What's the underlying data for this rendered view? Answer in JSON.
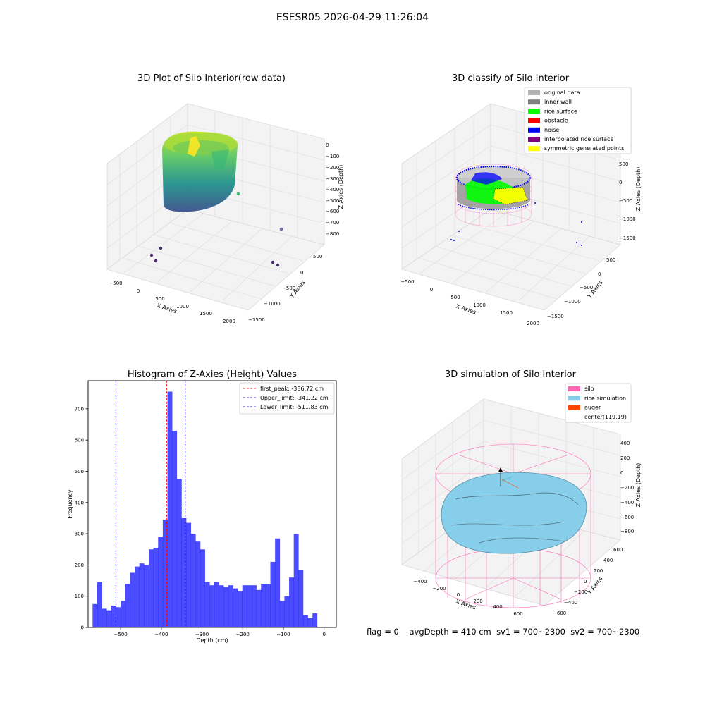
{
  "figure": {
    "title": "ESESR05 2026-04-29 11:26:04",
    "status": {
      "flag": "flag = 0",
      "avg_depth": "avgDepth = 410 cm",
      "sv1": "sv1 = 700~2300",
      "sv2": "sv2 = 700~2300"
    }
  },
  "chart_data": [
    {
      "type": "scatter",
      "title": "3D Plot of Silo Interior(row data)",
      "xlabel": "X Axies",
      "ylabel": "Y Axies",
      "zlabel": "Z Axies (Depth)",
      "x_ticks": [
        "−500",
        "0",
        "500",
        "1000",
        "1500",
        "2000"
      ],
      "y_ticks": [
        "500",
        "0",
        "−500",
        "−1000",
        "−1500"
      ],
      "z_ticks": [
        "0",
        "−100",
        "−200",
        "−300",
        "−400",
        "−500",
        "−600",
        "−700",
        "−800"
      ],
      "colormap": "viridis",
      "outlier_points": [
        {
          "x": 2100,
          "y": 200,
          "z": -820
        },
        {
          "x": 1450,
          "y": -380,
          "z": -500
        }
      ]
    },
    {
      "type": "scatter",
      "title": "3D classify of Silo Interior",
      "xlabel": "X Axies",
      "ylabel": "Y Axies",
      "zlabel": "Z Axies (Depth)",
      "x_ticks": [
        "−500",
        "0",
        "500",
        "1000",
        "1500",
        "2000"
      ],
      "y_ticks": [
        "500",
        "0",
        "−500",
        "−1000",
        "−1500"
      ],
      "z_ticks": [
        "1000",
        "500",
        "0",
        "−500",
        "−1000",
        "−1500"
      ],
      "legend_position": "top-right",
      "legend": [
        {
          "label": "original data",
          "color": "#b3b3b3"
        },
        {
          "label": "inner wall",
          "color": "#808080"
        },
        {
          "label": "rice surface",
          "color": "#00ff00"
        },
        {
          "label": "obstacle",
          "color": "#ff0000"
        },
        {
          "label": "noise",
          "color": "#0000ff"
        },
        {
          "label": "interpolated rice surface",
          "color": "#800080"
        },
        {
          "label": "symmetric generated points",
          "color": "#ffff00"
        }
      ]
    },
    {
      "type": "bar",
      "title": "Histogram of Z-Axies (Height) Values",
      "xlabel": "Depth (cm)",
      "ylabel": "Frequency",
      "xlim": [
        -580,
        30
      ],
      "ylim": [
        0,
        790
      ],
      "x_ticks": [
        -500,
        -400,
        -300,
        -200,
        -100,
        0
      ],
      "x_tick_labels": [
        "−500",
        "−400",
        "−300",
        "−200",
        "−100",
        "0"
      ],
      "y_ticks": [
        0,
        100,
        200,
        300,
        400,
        500,
        600,
        700
      ],
      "y_tick_labels": [
        "0",
        "100",
        "200",
        "300",
        "400",
        "500",
        "600",
        "700"
      ],
      "bin_start": -569,
      "bin_width": 11.5,
      "values": [
        75,
        145,
        60,
        55,
        70,
        65,
        85,
        140,
        175,
        195,
        205,
        200,
        250,
        255,
        290,
        345,
        755,
        630,
        475,
        350,
        335,
        300,
        275,
        250,
        145,
        135,
        145,
        135,
        130,
        135,
        125,
        115,
        135,
        135,
        135,
        120,
        140,
        140,
        210,
        285,
        85,
        100,
        160,
        300,
        185,
        40,
        30,
        45
      ],
      "bar_color": "#0000ff",
      "legend_position": "top-right",
      "vlines": [
        {
          "label": "first_peak: -386.72 cm",
          "x": -386.72,
          "color": "#ff0000"
        },
        {
          "label": "Upper_limit: -341.22 cm",
          "x": -341.22,
          "color": "#0000cc"
        },
        {
          "label": "Lower_limit: -511.83 cm",
          "x": -511.83,
          "color": "#0000cc"
        }
      ]
    },
    {
      "type": "scatter",
      "title": "3D simulation of Silo Interior",
      "xlabel": "X Axies",
      "ylabel": "Y Axies",
      "zlabel": "Z Axies (Depth)",
      "x_ticks": [
        "−400",
        "−200",
        "0",
        "200",
        "400",
        "600"
      ],
      "y_ticks": [
        "600",
        "400",
        "200",
        "0",
        "−200",
        "−400",
        "−600"
      ],
      "z_ticks": [
        "400",
        "200",
        "0",
        "−200",
        "−400",
        "−600",
        "−800"
      ],
      "legend_position": "top-right",
      "legend": [
        {
          "label": "silo",
          "color": "#ff69b4"
        },
        {
          "label": "rice simulation",
          "color": "#87ceeb"
        },
        {
          "label": "auger",
          "color": "#ff4500"
        },
        {
          "label": "center(119,19)",
          "color": ""
        }
      ]
    }
  ]
}
